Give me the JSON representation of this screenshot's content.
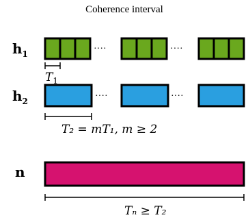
{
  "title": "Coherence interval",
  "rows": {
    "h1": {
      "label": "h",
      "subscript": "1",
      "color": "#6aa81e"
    },
    "h2": {
      "label": "h",
      "subscript": "2",
      "color": "#2a9fe0"
    },
    "n": {
      "label": "n",
      "color": "#d6126f"
    }
  },
  "annotations": {
    "t1": {
      "base": "T",
      "sub": "1"
    },
    "t2": {
      "text": "T₂ = mT₁, m ≥ 2"
    },
    "tn": {
      "text": "Tₙ ≥ T₂"
    }
  },
  "ellipsis": "····"
}
